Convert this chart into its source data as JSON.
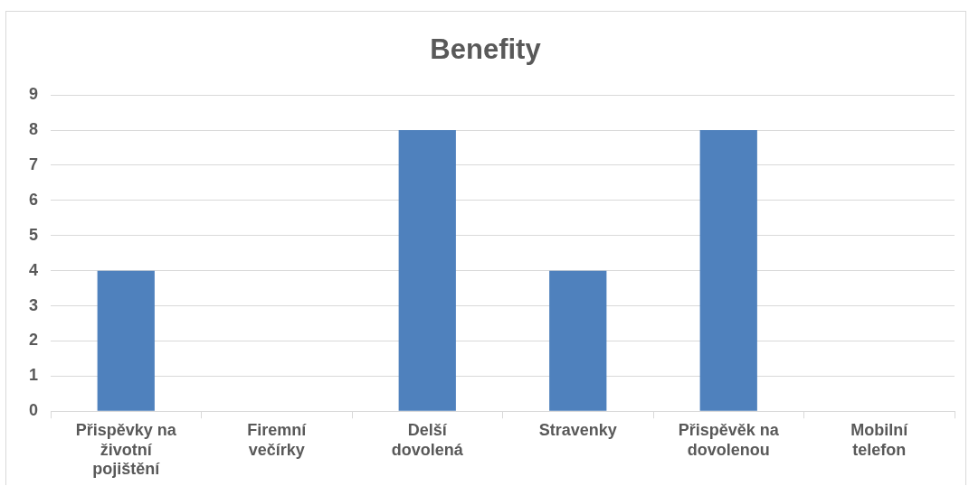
{
  "chart_data": {
    "type": "bar",
    "title": "Benefity",
    "categories": [
      "Přispěvky na životní pojištění",
      "Firemní večírky",
      "Delší dovolená",
      "Stravenky",
      "Přispěvěk na dovolenou",
      "Mobilní telefon"
    ],
    "values": [
      4,
      0,
      8,
      4,
      8,
      0
    ],
    "color": "#4f81bd",
    "ylim": [
      0,
      9
    ],
    "yticks": [
      0,
      1,
      2,
      3,
      4,
      5,
      6,
      7,
      8,
      9
    ],
    "grid": "y"
  }
}
